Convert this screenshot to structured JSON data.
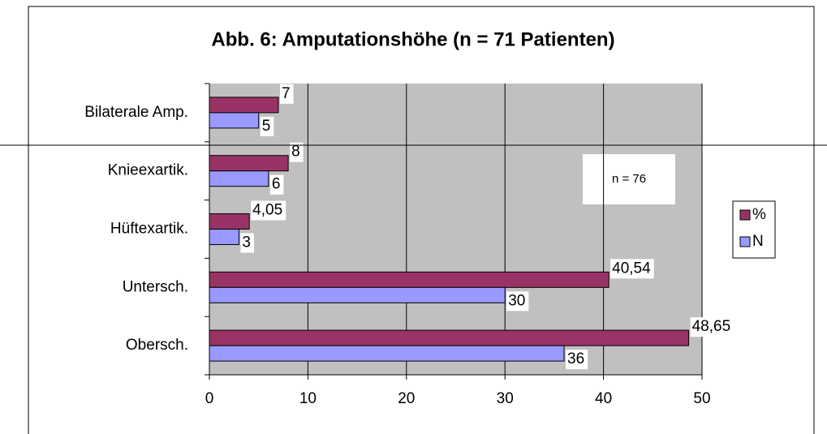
{
  "chart_data": {
    "type": "hbar",
    "title": "Abb. 6: Amputationshöhe (n = 71 Patienten)",
    "annotation": "n = 76",
    "categories": [
      "Bilaterale Amp.",
      "Knieexartik.",
      "Hüftexartik.",
      "Untersch.",
      "Obersch."
    ],
    "series": [
      {
        "name": "%",
        "color": "#993366",
        "values": [
          7,
          8,
          4.05,
          40.54,
          48.65
        ],
        "value_labels": [
          "7",
          "8",
          "4,05",
          "40,54",
          "48,65"
        ]
      },
      {
        "name": "N",
        "color": "#9999ff",
        "values": [
          5,
          6,
          3,
          30,
          36
        ]
      }
    ],
    "xlim": [
      0,
      50
    ],
    "xticks": [
      0,
      10,
      20,
      30,
      40,
      50
    ],
    "grid": true,
    "legend": "right"
  }
}
